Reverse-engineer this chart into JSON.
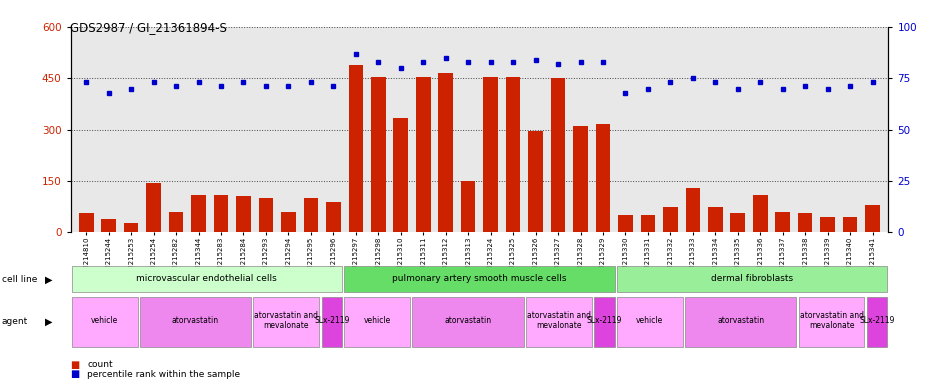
{
  "title": "GDS2987 / GI_21361894-S",
  "samples": [
    "GSM214810",
    "GSM215244",
    "GSM215253",
    "GSM215254",
    "GSM215282",
    "GSM215344",
    "GSM215283",
    "GSM215284",
    "GSM215293",
    "GSM215294",
    "GSM215295",
    "GSM215296",
    "GSM215297",
    "GSM215298",
    "GSM215310",
    "GSM215311",
    "GSM215312",
    "GSM215313",
    "GSM215324",
    "GSM215325",
    "GSM215326",
    "GSM215327",
    "GSM215328",
    "GSM215329",
    "GSM215330",
    "GSM215331",
    "GSM215332",
    "GSM215333",
    "GSM215334",
    "GSM215335",
    "GSM215336",
    "GSM215337",
    "GSM215338",
    "GSM215339",
    "GSM215340",
    "GSM215341"
  ],
  "counts": [
    55,
    38,
    28,
    145,
    60,
    110,
    110,
    105,
    100,
    60,
    100,
    90,
    490,
    455,
    335,
    455,
    465,
    150,
    455,
    455,
    295,
    450,
    310,
    315,
    50,
    50,
    75,
    130,
    75,
    55,
    110,
    60,
    55,
    45,
    45,
    80
  ],
  "percentile_ranks": [
    73,
    68,
    70,
    73,
    71,
    73,
    71,
    73,
    71,
    71,
    73,
    71,
    87,
    83,
    80,
    83,
    85,
    83,
    83,
    83,
    84,
    82,
    83,
    83,
    68,
    70,
    73,
    75,
    73,
    70,
    73,
    70,
    71,
    70,
    71,
    73
  ],
  "bar_color": "#cc2200",
  "dot_color": "#0000cc",
  "ylim_left": [
    0,
    600
  ],
  "ylim_right": [
    0,
    100
  ],
  "yticks_left": [
    0,
    150,
    300,
    450,
    600
  ],
  "yticks_right": [
    0,
    25,
    50,
    75,
    100
  ],
  "cell_line_groups": [
    {
      "label": "microvascular endothelial cells",
      "start": 0,
      "end": 11,
      "color": "#ccffcc"
    },
    {
      "label": "pulmonary artery smooth muscle cells",
      "start": 12,
      "end": 23,
      "color": "#66dd66"
    },
    {
      "label": "dermal fibroblasts",
      "start": 24,
      "end": 35,
      "color": "#99ee99"
    }
  ],
  "agent_groups": [
    {
      "label": "vehicle",
      "start": 0,
      "end": 2,
      "color": "#ffaaff"
    },
    {
      "label": "atorvastatin",
      "start": 3,
      "end": 7,
      "color": "#ee88ee"
    },
    {
      "label": "atorvastatin and\nmevalonate",
      "start": 8,
      "end": 10,
      "color": "#ffaaff"
    },
    {
      "label": "SLx-2119",
      "start": 11,
      "end": 11,
      "color": "#dd44dd"
    },
    {
      "label": "vehicle",
      "start": 12,
      "end": 14,
      "color": "#ffaaff"
    },
    {
      "label": "atorvastatin",
      "start": 15,
      "end": 19,
      "color": "#ee88ee"
    },
    {
      "label": "atorvastatin and\nmevalonate",
      "start": 20,
      "end": 22,
      "color": "#ffaaff"
    },
    {
      "label": "SLx-2119",
      "start": 23,
      "end": 23,
      "color": "#dd44dd"
    },
    {
      "label": "vehicle",
      "start": 24,
      "end": 26,
      "color": "#ffaaff"
    },
    {
      "label": "atorvastatin",
      "start": 27,
      "end": 31,
      "color": "#ee88ee"
    },
    {
      "label": "atorvastatin and\nmevalonate",
      "start": 32,
      "end": 34,
      "color": "#ffaaff"
    },
    {
      "label": "SLx-2119",
      "start": 35,
      "end": 35,
      "color": "#dd44dd"
    }
  ],
  "bg_color": "#e8e8e8"
}
